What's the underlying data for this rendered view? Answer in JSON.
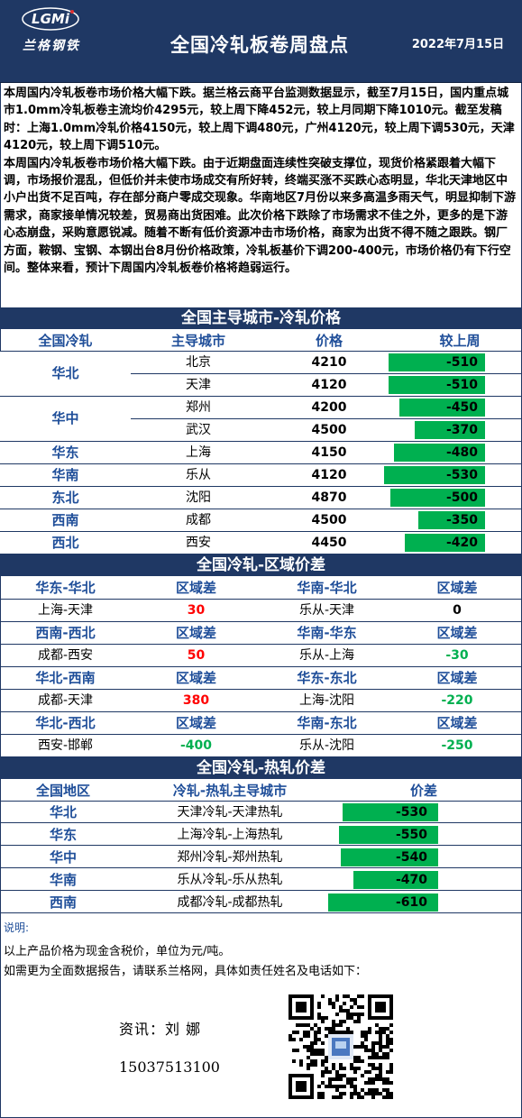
{
  "header": {
    "logo_text": "LGMi",
    "logo_subtitle": "兰格钢铁",
    "title": "全国冷轧板卷周盘点",
    "date": "2022年7月15日"
  },
  "intro": {
    "p1": "本周国内冷轧板卷市场价格大幅下跌。据兰格云商平台监测数据显示，截至7月15日，国内重点城市1.0mm冷轧板卷主流均价4295元，较上周下降452元，较上月同期下降1010元。截至发稿时：上海1.0mm冷轧价格4150元，较上周下调480元，广州4120元，较上周下调530元，天津4120元，较上周下调510元。",
    "p2": "本周国内冷轧板卷市场价格大幅下跌。由于近期盘面连续性突破支撑位，现货价格紧跟着大幅下调，市场报价混乱，但低价并未使市场成交有所好转，终端买涨不买跌心态明显，华北天津地区中小户出货不足百吨，存在部分商户零成交现象。华南地区7月份以来多高温多雨天气，明显抑制下游需求，商家接单情况较差，贸易商出货困难。此次价格下跌除了市场需求不佳之外，更多的是下游心态崩盘，采购意愿锐减。随着不断有低价资源冲击市场价格，商家为出货不得不随之跟跌。钢厂方面，鞍钢、宝钢、本钢出台8月份价格政策，冷轧板基价下调200-400元，市场价格仍有下行空间。整体来看，预计下周国内冷轧板卷价格将趋弱运行。"
  },
  "section1": {
    "title": "全国主导城市-冷轧价格",
    "headers": [
      "全国冷轧",
      "主导城市",
      "价格",
      "较上周"
    ],
    "regions": [
      "华北",
      "华中",
      "华东",
      "华南",
      "东北",
      "西南",
      "西北"
    ],
    "rows": [
      {
        "city": "北京",
        "price": "4210",
        "change": "-510",
        "abs": 510
      },
      {
        "city": "天津",
        "price": "4120",
        "change": "-510",
        "abs": 510
      },
      {
        "city": "郑州",
        "price": "4200",
        "change": "-450",
        "abs": 450
      },
      {
        "city": "武汉",
        "price": "4500",
        "change": "-370",
        "abs": 370
      },
      {
        "city": "上海",
        "price": "4150",
        "change": "-480",
        "abs": 480
      },
      {
        "city": "乐从",
        "price": "4120",
        "change": "-530",
        "abs": 530
      },
      {
        "city": "沈阳",
        "price": "4870",
        "change": "-500",
        "abs": 500
      },
      {
        "city": "成都",
        "price": "4500",
        "change": "-350",
        "abs": 350
      },
      {
        "city": "西安",
        "price": "4450",
        "change": "-420",
        "abs": 420
      }
    ]
  },
  "section2": {
    "title": "全国冷轧-区域价差",
    "label": "区域差",
    "blocks": [
      {
        "left_head": "华东-华北",
        "left_pair": "上海-天津",
        "left_val": "30",
        "left_color": "red",
        "right_head": "华南-华北",
        "right_pair": "乐从-天津",
        "right_val": "0",
        "right_color": "black"
      },
      {
        "left_head": "西南-西北",
        "left_pair": "成都-西安",
        "left_val": "50",
        "left_color": "red",
        "right_head": "华南-华东",
        "right_pair": "乐从-上海",
        "right_val": "-30",
        "right_color": "green"
      },
      {
        "left_head": "华北-西南",
        "left_pair": "成都-天津",
        "left_val": "380",
        "left_color": "red",
        "right_head": "华东-东北",
        "right_pair": "上海-沈阳",
        "right_val": "-220",
        "right_color": "green"
      },
      {
        "left_head": "华北-西北",
        "left_pair": "西安-邯郸",
        "left_val": "-400",
        "left_color": "green",
        "right_head": "华南-东北",
        "right_pair": "乐从-沈阳",
        "right_val": "-250",
        "right_color": "green"
      }
    ]
  },
  "section3": {
    "title": "全国冷轧-热轧价差",
    "headers": [
      "全国地区",
      "冷轧-热轧主导城市",
      "价差"
    ],
    "rows": [
      {
        "region": "华北",
        "pair": "天津冷轧-天津热轧",
        "diff": "-530",
        "abs": 530
      },
      {
        "region": "华东",
        "pair": "上海冷轧-上海热轧",
        "diff": "-550",
        "abs": 550
      },
      {
        "region": "华中",
        "pair": "郑州冷轧-郑州热轧",
        "diff": "-540",
        "abs": 540
      },
      {
        "region": "华南",
        "pair": "乐从冷轧-乐从热轧",
        "diff": "-470",
        "abs": 470
      },
      {
        "region": "西南",
        "pair": "成都冷轧-成都热轧",
        "diff": "-610",
        "abs": 610
      }
    ]
  },
  "notes": {
    "label": "说明:",
    "line1": "以上产品价格为现金含税价，单位为元/吨。",
    "line2": "如需更为全面数据报告，请联系兰格网，具体如责任姓名及电话如下：",
    "contact_name": "资讯：刘 娜",
    "contact_phone": "15037513100"
  },
  "colors": {
    "navy": "#1f3864",
    "heading_blue": "#1f4e99",
    "bar_green": "#00b050",
    "red": "#ff0000"
  }
}
